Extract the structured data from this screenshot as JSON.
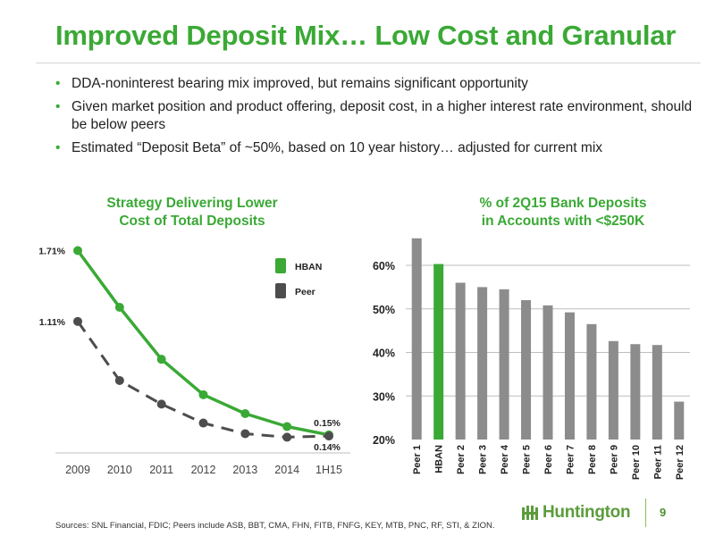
{
  "title": "Improved Deposit Mix… Low Cost and Granular",
  "bullets": [
    "DDA-noninterest bearing mix improved, but remains significant opportunity",
    "Given market position and product offering, deposit cost, in a higher interest rate environment, should be below peers",
    "Estimated “Deposit Beta” of ~50%, based on 10 year history… adjusted for current mix"
  ],
  "bullet_symbol": "•",
  "colors": {
    "green": "#3aa935",
    "peer": "#4d4d4d",
    "bar_gray": "#8c8c8c",
    "bar_green": "#3aa935"
  },
  "chart_data": [
    {
      "type": "line",
      "title": "Strategy Delivering Lower Cost of Total Deposits",
      "title_lines": [
        "Strategy Delivering Lower",
        "Cost of Total Deposits"
      ],
      "categories": [
        "2009",
        "2010",
        "2011",
        "2012",
        "2013",
        "2014",
        "1H15"
      ],
      "series": [
        {
          "name": "HBAN",
          "values": [
            1.71,
            1.23,
            0.79,
            0.49,
            0.33,
            0.22,
            0.15
          ],
          "style": "solid"
        },
        {
          "name": "Peer",
          "values": [
            1.11,
            0.61,
            0.41,
            0.25,
            0.16,
            0.13,
            0.14
          ],
          "style": "dashed"
        }
      ],
      "data_labels": [
        {
          "series": "HBAN",
          "index": 0,
          "text": "1.71%"
        },
        {
          "series": "Peer",
          "index": 0,
          "text": "1.11%"
        },
        {
          "series": "HBAN",
          "index": 6,
          "text": "0.15%"
        },
        {
          "series": "Peer",
          "index": 6,
          "text": "0.14%"
        }
      ],
      "legend": [
        "HBAN",
        "Peer"
      ],
      "legend_position": "top-right",
      "ylim": [
        0.05,
        1.85
      ],
      "grid": false
    },
    {
      "type": "bar",
      "title": "% of 2Q15 Bank Deposits in Accounts with <$250K",
      "title_lines": [
        "% of 2Q15 Bank Deposits",
        "in Accounts with <$250K"
      ],
      "categories": [
        "Peer 1",
        "HBAN",
        "Peer 2",
        "Peer 3",
        "Peer 4",
        "Peer 5",
        "Peer 6",
        "Peer 7",
        "Peer 8",
        "Peer 9",
        "Peer 10",
        "Peer 11",
        "Peer 12"
      ],
      "values": [
        66.2,
        60.3,
        56.0,
        55.0,
        54.5,
        52.0,
        50.8,
        49.2,
        46.5,
        42.6,
        41.9,
        41.7,
        28.7
      ],
      "highlight": "HBAN",
      "yticks": [
        20,
        30,
        40,
        50,
        60
      ],
      "ytick_labels": [
        "20%",
        "30%",
        "40%",
        "50%",
        "60%"
      ],
      "ylim": [
        20,
        68
      ],
      "grid": true
    }
  ],
  "footer": {
    "sources": "Sources: SNL Financial, FDIC; Peers include ASB, BBT, CMA, FHN, FITB, FNFG, KEY, MTB, PNC, RF, STI, & ZION.",
    "logo_text": "Huntington",
    "page_number": "9"
  }
}
